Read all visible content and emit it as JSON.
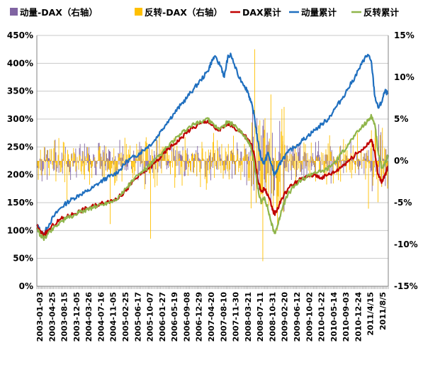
{
  "chart_data": {
    "type": "line",
    "title": "",
    "legend": {
      "placement": "top",
      "entries": [
        {
          "label": "动量-DAX（右轴）",
          "kind": "bar",
          "color": "#8064a2"
        },
        {
          "label": "反转-DAX（右轴）",
          "kind": "bar",
          "color": "#ffc000"
        },
        {
          "label": "DAX累计",
          "kind": "line",
          "color": "#c00000"
        },
        {
          "label": "动量累计",
          "kind": "line",
          "color": "#1f6fbf"
        },
        {
          "label": "反转累计",
          "kind": "line",
          "color": "#8fb54a"
        }
      ]
    },
    "y_left": {
      "ylim": [
        0,
        450
      ],
      "ticks": [
        "0%",
        "50%",
        "100%",
        "150%",
        "200%",
        "250%",
        "300%",
        "350%",
        "400%",
        "450%"
      ]
    },
    "y_right": {
      "ylim": [
        -15,
        15
      ],
      "ticks": [
        "-15%",
        "-10%",
        "-5%",
        "0%",
        "5%",
        "10%",
        "15%"
      ]
    },
    "x_ticks": [
      "2003-01-03",
      "2003-04-25",
      "2003-08-15",
      "2003-12-05",
      "2004-03-26",
      "2004-07-16",
      "2004-11-05",
      "2005-02-25",
      "2005-06-17",
      "2005-10-07",
      "2006-01-27",
      "2006-05-19",
      "2006-09-08",
      "2006-12-29",
      "2007-04-20",
      "2007-08-10",
      "2007-11-30",
      "2008-03-21",
      "2008-07-11",
      "2008-10-31",
      "2009-02-20",
      "2009-06-12",
      "2009-10-02",
      "2010-01-22",
      "2010-05-14",
      "2010-09-03",
      "2010-12-24",
      "2011/4/15",
      "2011/8/5"
    ],
    "grid": true,
    "series": [
      {
        "name": "动量累计",
        "axis": "left",
        "color": "#1f6fbf",
        "points": [
          [
            0,
            110
          ],
          [
            1,
            100
          ],
          [
            2,
            92
          ],
          [
            3,
            105
          ],
          [
            5,
            125
          ],
          [
            7,
            140
          ],
          [
            9,
            150
          ],
          [
            11,
            158
          ],
          [
            13,
            165
          ],
          [
            15,
            170
          ],
          [
            17,
            178
          ],
          [
            19,
            187
          ],
          [
            21,
            195
          ],
          [
            23,
            200
          ],
          [
            25,
            210
          ],
          [
            27,
            225
          ],
          [
            29,
            232
          ],
          [
            31,
            240
          ],
          [
            33,
            250
          ],
          [
            35,
            260
          ],
          [
            37,
            278
          ],
          [
            39,
            295
          ],
          [
            41,
            310
          ],
          [
            43,
            325
          ],
          [
            45,
            340
          ],
          [
            47,
            355
          ],
          [
            49,
            370
          ],
          [
            51,
            385
          ],
          [
            52,
            400
          ],
          [
            53,
            412
          ],
          [
            55,
            395
          ],
          [
            56,
            375
          ],
          [
            57,
            410
          ],
          [
            58,
            415
          ],
          [
            60,
            380
          ],
          [
            62,
            360
          ],
          [
            63,
            350
          ],
          [
            64,
            330
          ],
          [
            65,
            305
          ],
          [
            66,
            260
          ],
          [
            67,
            230
          ],
          [
            68,
            220
          ],
          [
            69,
            240
          ],
          [
            70,
            220
          ],
          [
            71,
            200
          ],
          [
            72,
            210
          ],
          [
            73,
            225
          ],
          [
            75,
            240
          ],
          [
            77,
            250
          ],
          [
            79,
            260
          ],
          [
            81,
            270
          ],
          [
            83,
            280
          ],
          [
            85,
            290
          ],
          [
            87,
            300
          ],
          [
            89,
            318
          ],
          [
            91,
            335
          ],
          [
            93,
            355
          ],
          [
            95,
            375
          ],
          [
            97,
            398
          ],
          [
            98,
            410
          ],
          [
            99,
            415
          ],
          [
            100,
            400
          ],
          [
            101,
            340
          ],
          [
            102,
            320
          ],
          [
            103,
            330
          ],
          [
            104,
            350
          ],
          [
            105,
            345
          ]
        ]
      },
      {
        "name": "DAX累计",
        "axis": "left",
        "color": "#c00000",
        "points": [
          [
            0,
            108
          ],
          [
            1,
            98
          ],
          [
            2,
            92
          ],
          [
            3,
            97
          ],
          [
            5,
            110
          ],
          [
            7,
            120
          ],
          [
            9,
            125
          ],
          [
            11,
            130
          ],
          [
            13,
            135
          ],
          [
            15,
            140
          ],
          [
            17,
            144
          ],
          [
            19,
            148
          ],
          [
            21,
            152
          ],
          [
            23,
            155
          ],
          [
            25,
            162
          ],
          [
            27,
            175
          ],
          [
            29,
            190
          ],
          [
            31,
            200
          ],
          [
            33,
            210
          ],
          [
            35,
            220
          ],
          [
            37,
            232
          ],
          [
            39,
            245
          ],
          [
            41,
            255
          ],
          [
            43,
            265
          ],
          [
            45,
            278
          ],
          [
            47,
            285
          ],
          [
            49,
            292
          ],
          [
            51,
            297
          ],
          [
            52,
            290
          ],
          [
            54,
            280
          ],
          [
            56,
            285
          ],
          [
            57,
            293
          ],
          [
            58,
            290
          ],
          [
            60,
            280
          ],
          [
            62,
            270
          ],
          [
            63,
            265
          ],
          [
            64,
            255
          ],
          [
            65,
            235
          ],
          [
            66,
            190
          ],
          [
            67,
            170
          ],
          [
            68,
            175
          ],
          [
            69,
            165
          ],
          [
            70,
            145
          ],
          [
            71,
            130
          ],
          [
            72,
            140
          ],
          [
            73,
            155
          ],
          [
            75,
            175
          ],
          [
            77,
            185
          ],
          [
            79,
            192
          ],
          [
            81,
            197
          ],
          [
            83,
            200
          ],
          [
            85,
            195
          ],
          [
            87,
            200
          ],
          [
            89,
            205
          ],
          [
            91,
            215
          ],
          [
            93,
            225
          ],
          [
            95,
            235
          ],
          [
            97,
            245
          ],
          [
            99,
            255
          ],
          [
            100,
            263
          ],
          [
            101,
            240
          ],
          [
            102,
            200
          ],
          [
            103,
            185
          ],
          [
            104,
            200
          ],
          [
            105,
            215
          ]
        ]
      },
      {
        "name": "反转累计",
        "axis": "left",
        "color": "#8fb54a",
        "points": [
          [
            0,
            105
          ],
          [
            1,
            92
          ],
          [
            2,
            85
          ],
          [
            3,
            92
          ],
          [
            5,
            105
          ],
          [
            7,
            115
          ],
          [
            9,
            122
          ],
          [
            11,
            127
          ],
          [
            13,
            133
          ],
          [
            15,
            138
          ],
          [
            17,
            142
          ],
          [
            19,
            146
          ],
          [
            21,
            150
          ],
          [
            23,
            154
          ],
          [
            25,
            163
          ],
          [
            27,
            178
          ],
          [
            29,
            192
          ],
          [
            31,
            203
          ],
          [
            33,
            213
          ],
          [
            35,
            224
          ],
          [
            37,
            236
          ],
          [
            39,
            250
          ],
          [
            41,
            262
          ],
          [
            43,
            272
          ],
          [
            45,
            283
          ],
          [
            47,
            290
          ],
          [
            49,
            295
          ],
          [
            51,
            302
          ],
          [
            52,
            293
          ],
          [
            54,
            283
          ],
          [
            56,
            288
          ],
          [
            57,
            296
          ],
          [
            58,
            292
          ],
          [
            60,
            283
          ],
          [
            62,
            270
          ],
          [
            63,
            262
          ],
          [
            64,
            248
          ],
          [
            65,
            220
          ],
          [
            66,
            175
          ],
          [
            67,
            150
          ],
          [
            68,
            160
          ],
          [
            69,
            140
          ],
          [
            70,
            115
          ],
          [
            71,
            95
          ],
          [
            72,
            110
          ],
          [
            73,
            135
          ],
          [
            75,
            165
          ],
          [
            77,
            180
          ],
          [
            79,
            190
          ],
          [
            81,
            198
          ],
          [
            83,
            205
          ],
          [
            85,
            205
          ],
          [
            87,
            212
          ],
          [
            89,
            222
          ],
          [
            91,
            238
          ],
          [
            93,
            255
          ],
          [
            95,
            270
          ],
          [
            97,
            285
          ],
          [
            99,
            297
          ],
          [
            100,
            305
          ],
          [
            101,
            290
          ],
          [
            102,
            240
          ],
          [
            103,
            212
          ],
          [
            104,
            220
          ],
          [
            105,
            235
          ]
        ]
      }
    ],
    "bar_series": [
      {
        "name": "动量-DAX（右轴）",
        "axis": "right",
        "color": "#8064a2",
        "amplitude_pct": 2.2
      },
      {
        "name": "反转-DAX（右轴）",
        "axis": "right",
        "color": "#ffc000",
        "amplitude_pct": 2.8
      }
    ]
  }
}
